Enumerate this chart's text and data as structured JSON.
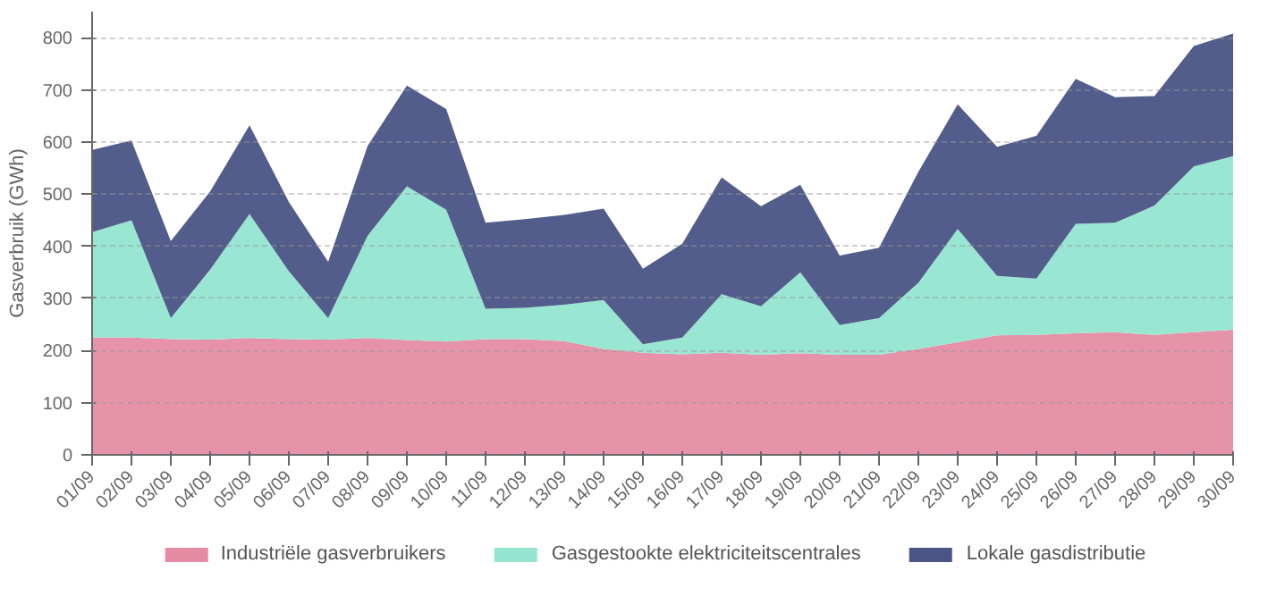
{
  "chart_data": {
    "type": "area",
    "stacked": true,
    "ylabel": "Gasverbruik (GWh)",
    "categories": [
      "01/09",
      "02/09",
      "03/09",
      "04/09",
      "05/09",
      "06/09",
      "07/09",
      "08/09",
      "09/09",
      "10/09",
      "11/09",
      "12/09",
      "13/09",
      "14/09",
      "15/09",
      "16/09",
      "17/09",
      "18/09",
      "19/09",
      "20/09",
      "21/09",
      "22/09",
      "23/09",
      "24/09",
      "25/09",
      "26/09",
      "27/09",
      "28/09",
      "29/09",
      "30/09"
    ],
    "series": [
      {
        "name": "Industriële gasverbruikers",
        "color": "#e58ca4",
        "values": [
          225,
          225,
          222,
          221,
          224,
          222,
          221,
          224,
          220,
          217,
          222,
          222,
          218,
          203,
          196,
          193,
          196,
          192,
          195,
          192,
          192,
          203,
          216,
          229,
          230,
          233,
          235,
          230,
          235,
          240
        ]
      },
      {
        "name": "Gasgestookte elektriciteitscentrales",
        "color": "#94e5d0",
        "values": [
          202,
          225,
          40,
          134,
          238,
          130,
          41,
          196,
          295,
          253,
          58,
          60,
          70,
          94,
          16,
          32,
          112,
          93,
          155,
          57,
          70,
          127,
          217,
          114,
          108,
          210,
          210,
          248,
          318,
          333
        ]
      },
      {
        "name": "Lokale gasdistributie",
        "color": "#4a5485",
        "values": [
          158,
          153,
          148,
          150,
          170,
          133,
          108,
          172,
          193,
          193,
          165,
          170,
          172,
          175,
          145,
          180,
          224,
          192,
          168,
          133,
          135,
          213,
          239,
          248,
          274,
          278,
          241,
          210,
          231,
          235
        ]
      }
    ],
    "ylim": [
      0,
      850
    ],
    "yticks": [
      0,
      100,
      200,
      300,
      400,
      500,
      600,
      700,
      800
    ],
    "grid": "y",
    "legend": "bottom"
  }
}
